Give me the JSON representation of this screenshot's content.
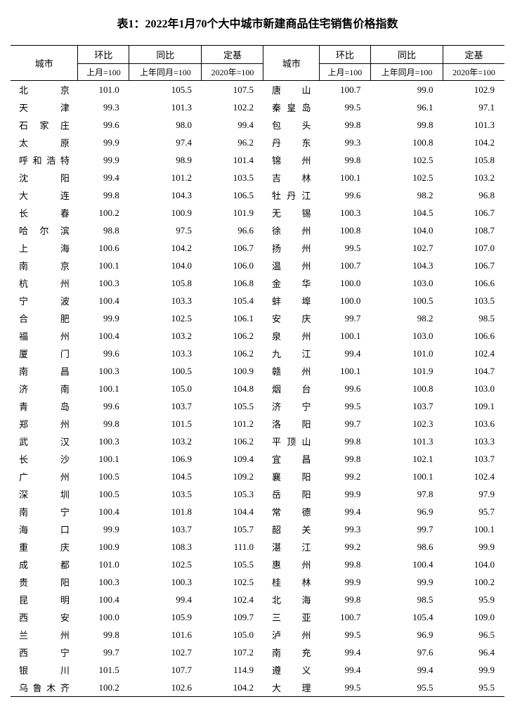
{
  "title": "表1：2022年1月70个大中城市新建商品住宅销售价格指数",
  "headers": {
    "city": "城市",
    "mom": "环比",
    "yoy": "同比",
    "base": "定基",
    "mom_sub": "上月=100",
    "yoy_sub": "上年同月=100",
    "base_sub": "2020年=100"
  },
  "rows": [
    {
      "c1": "北京",
      "m1": "101.0",
      "y1": "105.5",
      "b1": "107.5",
      "c2": "唐山",
      "m2": "100.7",
      "y2": "99.0",
      "b2": "102.9"
    },
    {
      "c1": "天津",
      "m1": "99.3",
      "y1": "101.3",
      "b1": "102.2",
      "c2": "秦皇岛",
      "m2": "99.5",
      "y2": "96.1",
      "b2": "97.1"
    },
    {
      "c1": "石家庄",
      "m1": "99.6",
      "y1": "98.0",
      "b1": "99.4",
      "c2": "包头",
      "m2": "99.8",
      "y2": "99.8",
      "b2": "101.3"
    },
    {
      "c1": "太原",
      "m1": "99.9",
      "y1": "97.4",
      "b1": "96.2",
      "c2": "丹东",
      "m2": "99.3",
      "y2": "100.8",
      "b2": "104.2"
    },
    {
      "c1": "呼和浩特",
      "m1": "99.9",
      "y1": "98.9",
      "b1": "101.4",
      "c2": "锦州",
      "m2": "99.8",
      "y2": "102.5",
      "b2": "105.8"
    },
    {
      "c1": "沈阳",
      "m1": "99.4",
      "y1": "101.2",
      "b1": "103.5",
      "c2": "吉林",
      "m2": "100.1",
      "y2": "102.5",
      "b2": "103.2"
    },
    {
      "c1": "大连",
      "m1": "99.8",
      "y1": "104.3",
      "b1": "106.5",
      "c2": "牡丹江",
      "m2": "99.6",
      "y2": "98.2",
      "b2": "96.8"
    },
    {
      "c1": "长春",
      "m1": "100.2",
      "y1": "100.9",
      "b1": "101.9",
      "c2": "无锡",
      "m2": "100.3",
      "y2": "104.5",
      "b2": "106.7"
    },
    {
      "c1": "哈尔滨",
      "m1": "98.8",
      "y1": "97.5",
      "b1": "96.6",
      "c2": "徐州",
      "m2": "100.8",
      "y2": "104.0",
      "b2": "108.7"
    },
    {
      "c1": "上海",
      "m1": "100.6",
      "y1": "104.2",
      "b1": "106.7",
      "c2": "扬州",
      "m2": "99.5",
      "y2": "102.7",
      "b2": "107.0"
    },
    {
      "c1": "南京",
      "m1": "100.1",
      "y1": "104.0",
      "b1": "106.0",
      "c2": "温州",
      "m2": "100.7",
      "y2": "104.3",
      "b2": "106.7"
    },
    {
      "c1": "杭州",
      "m1": "100.3",
      "y1": "105.8",
      "b1": "106.8",
      "c2": "金华",
      "m2": "100.0",
      "y2": "103.0",
      "b2": "106.6"
    },
    {
      "c1": "宁波",
      "m1": "100.4",
      "y1": "103.3",
      "b1": "105.4",
      "c2": "蚌埠",
      "m2": "100.0",
      "y2": "100.5",
      "b2": "103.5"
    },
    {
      "c1": "合肥",
      "m1": "99.9",
      "y1": "102.5",
      "b1": "106.1",
      "c2": "安庆",
      "m2": "99.7",
      "y2": "98.2",
      "b2": "98.5"
    },
    {
      "c1": "福州",
      "m1": "100.4",
      "y1": "103.2",
      "b1": "106.2",
      "c2": "泉州",
      "m2": "100.1",
      "y2": "103.0",
      "b2": "106.6"
    },
    {
      "c1": "厦门",
      "m1": "99.6",
      "y1": "103.3",
      "b1": "106.2",
      "c2": "九江",
      "m2": "99.4",
      "y2": "101.0",
      "b2": "102.4"
    },
    {
      "c1": "南昌",
      "m1": "100.3",
      "y1": "100.5",
      "b1": "100.9",
      "c2": "赣州",
      "m2": "100.1",
      "y2": "101.9",
      "b2": "104.7"
    },
    {
      "c1": "济南",
      "m1": "100.1",
      "y1": "105.0",
      "b1": "104.8",
      "c2": "烟台",
      "m2": "99.6",
      "y2": "100.8",
      "b2": "103.0"
    },
    {
      "c1": "青岛",
      "m1": "99.6",
      "y1": "103.7",
      "b1": "105.5",
      "c2": "济宁",
      "m2": "99.5",
      "y2": "103.7",
      "b2": "109.1"
    },
    {
      "c1": "郑州",
      "m1": "99.8",
      "y1": "101.5",
      "b1": "101.2",
      "c2": "洛阳",
      "m2": "99.7",
      "y2": "102.3",
      "b2": "103.6"
    },
    {
      "c1": "武汉",
      "m1": "100.3",
      "y1": "103.2",
      "b1": "106.2",
      "c2": "平顶山",
      "m2": "99.8",
      "y2": "101.3",
      "b2": "103.3"
    },
    {
      "c1": "长沙",
      "m1": "100.1",
      "y1": "106.9",
      "b1": "109.4",
      "c2": "宜昌",
      "m2": "99.8",
      "y2": "102.1",
      "b2": "103.7"
    },
    {
      "c1": "广州",
      "m1": "100.5",
      "y1": "104.5",
      "b1": "109.2",
      "c2": "襄阳",
      "m2": "99.2",
      "y2": "100.1",
      "b2": "102.4"
    },
    {
      "c1": "深圳",
      "m1": "100.5",
      "y1": "103.5",
      "b1": "105.3",
      "c2": "岳阳",
      "m2": "99.9",
      "y2": "97.8",
      "b2": "97.9"
    },
    {
      "c1": "南宁",
      "m1": "100.4",
      "y1": "101.8",
      "b1": "104.4",
      "c2": "常德",
      "m2": "99.4",
      "y2": "96.9",
      "b2": "95.7"
    },
    {
      "c1": "海口",
      "m1": "99.9",
      "y1": "103.7",
      "b1": "105.7",
      "c2": "韶关",
      "m2": "99.3",
      "y2": "99.7",
      "b2": "100.1"
    },
    {
      "c1": "重庆",
      "m1": "100.9",
      "y1": "108.3",
      "b1": "111.0",
      "c2": "湛江",
      "m2": "99.2",
      "y2": "98.6",
      "b2": "99.9"
    },
    {
      "c1": "成都",
      "m1": "101.0",
      "y1": "102.5",
      "b1": "105.5",
      "c2": "惠州",
      "m2": "99.8",
      "y2": "100.4",
      "b2": "104.0"
    },
    {
      "c1": "贵阳",
      "m1": "100.3",
      "y1": "100.3",
      "b1": "102.5",
      "c2": "桂林",
      "m2": "99.9",
      "y2": "99.9",
      "b2": "100.2"
    },
    {
      "c1": "昆明",
      "m1": "100.4",
      "y1": "99.4",
      "b1": "102.4",
      "c2": "北海",
      "m2": "99.8",
      "y2": "98.5",
      "b2": "95.9"
    },
    {
      "c1": "西安",
      "m1": "100.0",
      "y1": "105.9",
      "b1": "109.7",
      "c2": "三亚",
      "m2": "100.7",
      "y2": "105.4",
      "b2": "109.0"
    },
    {
      "c1": "兰州",
      "m1": "99.8",
      "y1": "101.6",
      "b1": "105.0",
      "c2": "泸州",
      "m2": "99.5",
      "y2": "96.9",
      "b2": "96.5"
    },
    {
      "c1": "西宁",
      "m1": "99.7",
      "y1": "102.7",
      "b1": "107.2",
      "c2": "南充",
      "m2": "99.4",
      "y2": "97.6",
      "b2": "96.4"
    },
    {
      "c1": "银川",
      "m1": "101.5",
      "y1": "107.7",
      "b1": "114.9",
      "c2": "遵义",
      "m2": "99.4",
      "y2": "99.4",
      "b2": "99.9"
    },
    {
      "c1": "乌鲁木齐",
      "m1": "100.2",
      "y1": "102.6",
      "b1": "104.2",
      "c2": "大理",
      "m2": "99.5",
      "y2": "95.5",
      "b2": "95.5"
    }
  ]
}
